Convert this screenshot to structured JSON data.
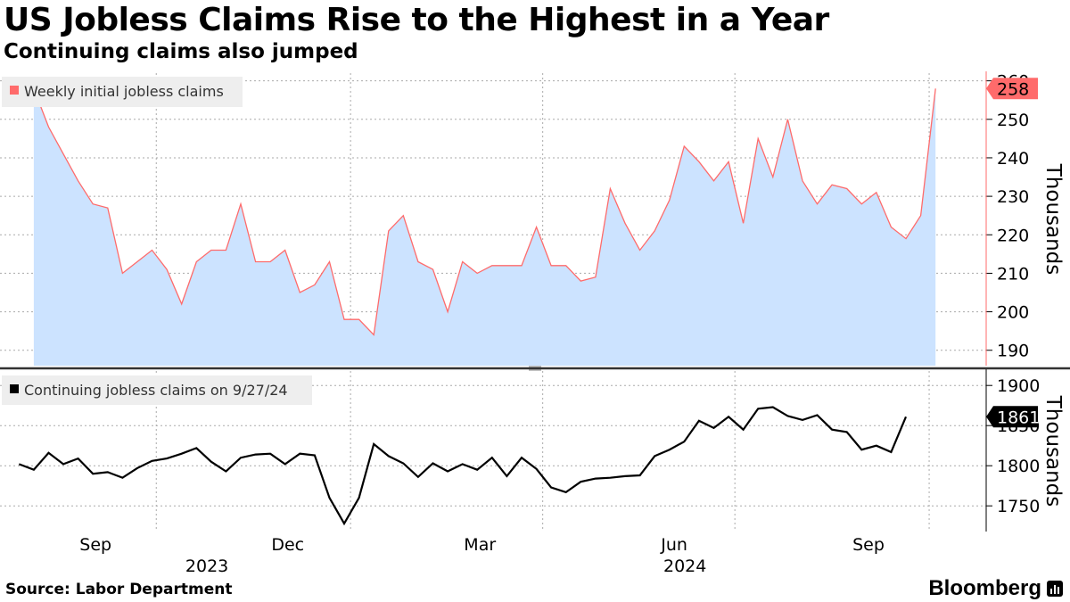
{
  "header": {
    "title": "US Jobless Claims Rise to the Highest in a Year",
    "subtitle": "Continuing claims also jumped"
  },
  "footer": {
    "source": "Source: Labor Department",
    "brand": "Bloomberg"
  },
  "colors": {
    "initial_line": "#ff6b6b",
    "initial_fill": "#cce3ff",
    "continuing_line": "#000000",
    "grid": "#aaaaaa",
    "divider": "#333333"
  },
  "chart_data": [
    {
      "type": "area",
      "legend": "Weekly initial jobless claims",
      "ylabel": "Thousands",
      "ylim": [
        186,
        262
      ],
      "yticks": [
        190,
        200,
        210,
        220,
        230,
        240,
        250,
        260
      ],
      "last_value_label": "258",
      "grid": true,
      "legend_position": "top-left",
      "x_start": "2023-08-04",
      "x_step_days": 7,
      "values": [
        258,
        248,
        241,
        234,
        228,
        227,
        210,
        213,
        216,
        211,
        202,
        213,
        216,
        216,
        228,
        213,
        213,
        216,
        205,
        207,
        213,
        198,
        198,
        194,
        221,
        225,
        213,
        211,
        200,
        213,
        210,
        212,
        212,
        212,
        222,
        212,
        212,
        208,
        209,
        232,
        223,
        216,
        221,
        229,
        243,
        239,
        234,
        239,
        223,
        245,
        235,
        250,
        234,
        228,
        233,
        232,
        228,
        231,
        222,
        219,
        225,
        258
      ]
    },
    {
      "type": "line",
      "legend": "Continuing jobless claims on 9/27/24",
      "ylabel": "Thousands",
      "ylim": [
        1718,
        1918
      ],
      "yticks": [
        1750,
        1800,
        1850,
        1900
      ],
      "last_value_label": "1861",
      "grid": true,
      "legend_position": "top-left",
      "x_start": "2023-07-28",
      "x_step_days": 7,
      "values": [
        1802,
        1795,
        1816,
        1802,
        1809,
        1790,
        1792,
        1785,
        1797,
        1806,
        1809,
        1815,
        1822,
        1805,
        1793,
        1810,
        1814,
        1815,
        1802,
        1815,
        1813,
        1760,
        1728,
        1760,
        1827,
        1812,
        1803,
        1786,
        1803,
        1793,
        1802,
        1795,
        1810,
        1787,
        1810,
        1796,
        1773,
        1767,
        1780,
        1784,
        1785,
        1787,
        1788,
        1812,
        1820,
        1830,
        1856,
        1847,
        1861,
        1845,
        1871,
        1873,
        1862,
        1857,
        1863,
        1845,
        1842,
        1820,
        1825,
        1817,
        1861
      ]
    }
  ],
  "x_axis": {
    "month_labels": [
      "Sep",
      "Dec",
      "Mar",
      "Jun",
      "Sep"
    ],
    "year_labels": [
      "2023",
      "2024"
    ]
  }
}
